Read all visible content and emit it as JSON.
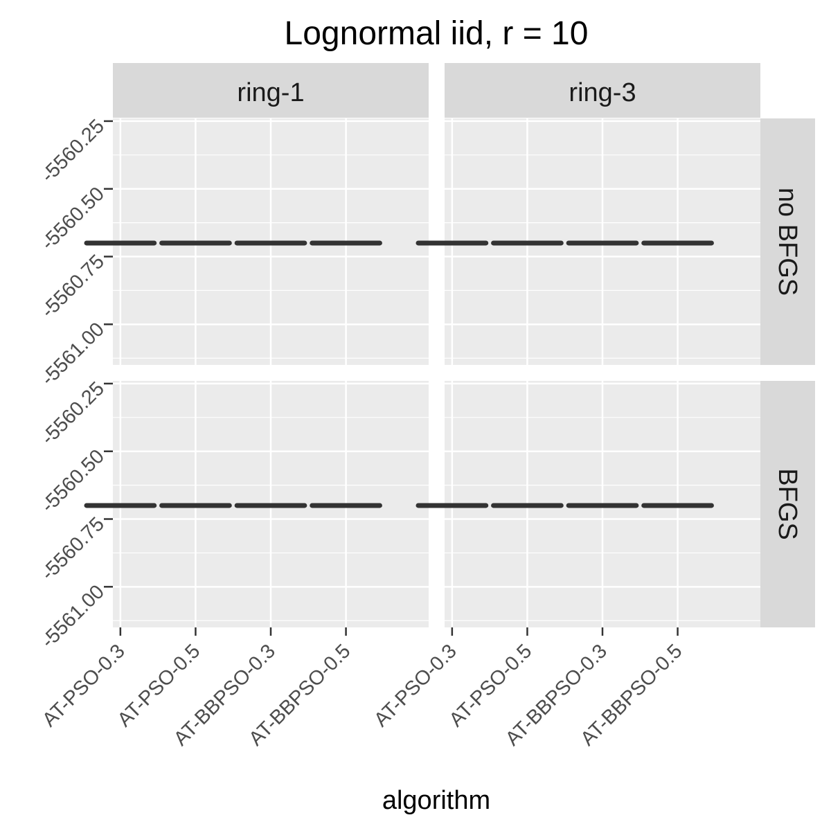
{
  "chart_data": {
    "type": "box",
    "title": "Lognormal iid, r = 10",
    "xlabel": "algorithm",
    "ylabel": "",
    "categories": [
      "AT-PSO-0.3",
      "AT-PSO-0.5",
      "AT-BBPSO-0.3",
      "AT-BBPSO-0.5"
    ],
    "ylim": [
      -5561.15,
      -5560.24
    ],
    "yticks": [
      -5560.25,
      -5560.5,
      -5560.75,
      -5561.0
    ],
    "ytick_labels": [
      "-5560.25",
      "-5560.50",
      "-5560.75",
      "-5561.00"
    ],
    "grid": true,
    "facet_columns": [
      "ring-1",
      "ring-3"
    ],
    "facet_rows": [
      "no BFGS",
      "BFGS"
    ],
    "panels": [
      {
        "column": "ring-1",
        "row": "no BFGS",
        "values": [
          -5560.7,
          -5560.7,
          -5560.7,
          -5560.7
        ]
      },
      {
        "column": "ring-3",
        "row": "no BFGS",
        "values": [
          -5560.7,
          -5560.7,
          -5560.7,
          -5560.7
        ]
      },
      {
        "column": "ring-1",
        "row": "BFGS",
        "values": [
          -5560.7,
          -5560.7,
          -5560.7,
          -5560.7
        ]
      },
      {
        "column": "ring-3",
        "row": "BFGS",
        "values": [
          -5560.7,
          -5560.7,
          -5560.7,
          -5560.7
        ]
      }
    ],
    "colors": {
      "panel_background": "#ebebeb",
      "grid": "#ffffff",
      "strip_background": "#d9d9d9",
      "box": "#333333"
    }
  }
}
